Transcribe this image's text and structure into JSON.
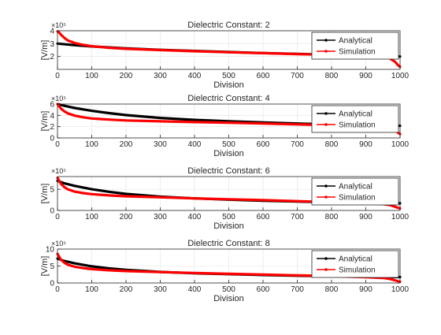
{
  "figure": {
    "background": "#ffffff",
    "axis_color": "#262626",
    "grid_color": "#e3e3e3"
  },
  "chart_data": [
    {
      "type": "line",
      "title": "Dielectric Constant: 2",
      "xlabel": "Division",
      "ylabel": "[V/m]",
      "y_exponent_label": "×10⁵",
      "xlim": [
        0,
        1000
      ],
      "ylim": [
        1,
        4
      ],
      "xticks": [
        "0",
        "100",
        "200",
        "300",
        "400",
        "500",
        "600",
        "700",
        "800",
        "900",
        "1000"
      ],
      "yticks": [
        "2",
        "3",
        "4"
      ],
      "grid": true,
      "legend": "top-right",
      "series": [
        {
          "name": "Analytical",
          "color": "#000000",
          "x": [
            0,
            50,
            100,
            200,
            300,
            400,
            500,
            600,
            700,
            800,
            900,
            950,
            1000
          ],
          "y": [
            3.0,
            2.88,
            2.78,
            2.63,
            2.52,
            2.43,
            2.35,
            2.27,
            2.2,
            2.13,
            2.07,
            2.04,
            2.0
          ]
        },
        {
          "name": "Simulation",
          "color": "#ff0000",
          "x": [
            0,
            5,
            10,
            20,
            30,
            50,
            75,
            100,
            150,
            200,
            300,
            400,
            500,
            600,
            700,
            800,
            900,
            950,
            970,
            985,
            995,
            1000
          ],
          "y": [
            3.95,
            3.85,
            3.7,
            3.45,
            3.25,
            3.05,
            2.9,
            2.8,
            2.68,
            2.6,
            2.5,
            2.41,
            2.33,
            2.26,
            2.19,
            2.12,
            2.03,
            1.95,
            1.85,
            1.6,
            1.3,
            1.2
          ]
        }
      ]
    },
    {
      "type": "line",
      "title": "Dielectric Constant: 4",
      "xlabel": "Division",
      "ylabel": "[V/m]",
      "y_exponent_label": "×10⁵",
      "xlim": [
        0,
        1000
      ],
      "ylim": [
        0,
        6
      ],
      "xticks": [
        "0",
        "100",
        "200",
        "300",
        "400",
        "500",
        "600",
        "700",
        "800",
        "900",
        "1000"
      ],
      "yticks": [
        "0",
        "2",
        "4",
        "6"
      ],
      "grid": true,
      "legend": "top-right",
      "series": [
        {
          "name": "Analytical",
          "color": "#000000",
          "x": [
            0,
            20,
            50,
            100,
            150,
            200,
            300,
            400,
            500,
            600,
            700,
            800,
            900,
            1000
          ],
          "y": [
            6.0,
            5.7,
            5.3,
            4.8,
            4.4,
            4.05,
            3.55,
            3.2,
            2.95,
            2.75,
            2.55,
            2.4,
            2.25,
            2.15
          ]
        },
        {
          "name": "Simulation",
          "color": "#ff0000",
          "x": [
            0,
            5,
            10,
            20,
            30,
            50,
            75,
            100,
            150,
            200,
            300,
            400,
            500,
            600,
            700,
            800,
            900,
            950,
            970,
            985,
            995,
            1000
          ],
          "y": [
            6.0,
            5.6,
            5.2,
            4.7,
            4.35,
            3.95,
            3.65,
            3.45,
            3.25,
            3.1,
            2.95,
            2.8,
            2.7,
            2.55,
            2.4,
            2.25,
            2.05,
            1.9,
            1.7,
            1.3,
            0.9,
            0.7
          ]
        }
      ]
    },
    {
      "type": "line",
      "title": "Dielectric Constant: 6",
      "xlabel": "Division",
      "ylabel": "[V/m]",
      "y_exponent_label": "×10⁵",
      "xlim": [
        0,
        1000
      ],
      "ylim": [
        0,
        8
      ],
      "xticks": [
        "0",
        "100",
        "200",
        "300",
        "400",
        "500",
        "600",
        "700",
        "800",
        "900",
        "1000"
      ],
      "yticks": [
        "0",
        "5"
      ],
      "grid": true,
      "legend": "top-right",
      "series": [
        {
          "name": "Analytical",
          "color": "#000000",
          "x": [
            0,
            20,
            50,
            100,
            150,
            200,
            300,
            400,
            500,
            600,
            700,
            800,
            900,
            1000
          ],
          "y": [
            7.0,
            6.4,
            5.8,
            5.0,
            4.4,
            3.9,
            3.25,
            2.85,
            2.55,
            2.3,
            2.1,
            1.95,
            1.8,
            1.7
          ]
        },
        {
          "name": "Simulation",
          "color": "#ff0000",
          "x": [
            0,
            5,
            10,
            20,
            30,
            50,
            75,
            100,
            150,
            200,
            300,
            400,
            500,
            600,
            700,
            800,
            900,
            950,
            970,
            985,
            995,
            1000
          ],
          "y": [
            7.7,
            7.0,
            6.3,
            5.5,
            5.0,
            4.45,
            4.1,
            3.85,
            3.55,
            3.35,
            3.1,
            2.85,
            2.65,
            2.45,
            2.2,
            2.0,
            1.7,
            1.5,
            1.3,
            0.9,
            0.6,
            0.5
          ]
        }
      ]
    },
    {
      "type": "line",
      "title": "Dielectric Constant: 8",
      "xlabel": "Division",
      "ylabel": "[V/m]",
      "y_exponent_label": "×10⁵",
      "xlim": [
        0,
        1000
      ],
      "ylim": [
        0,
        10
      ],
      "xticks": [
        "0",
        "100",
        "200",
        "300",
        "400",
        "500",
        "600",
        "700",
        "800",
        "900",
        "1000"
      ],
      "yticks": [
        "0",
        "5",
        "10"
      ],
      "grid": true,
      "legend": "top-right",
      "series": [
        {
          "name": "Analytical",
          "color": "#000000",
          "x": [
            0,
            20,
            50,
            100,
            150,
            200,
            300,
            400,
            500,
            600,
            700,
            800,
            900,
            1000
          ],
          "y": [
            7.2,
            6.5,
            5.8,
            4.9,
            4.3,
            3.85,
            3.25,
            2.85,
            2.6,
            2.35,
            2.15,
            2.0,
            1.85,
            1.75
          ]
        },
        {
          "name": "Simulation",
          "color": "#ff0000",
          "x": [
            0,
            5,
            10,
            20,
            30,
            50,
            75,
            100,
            150,
            200,
            300,
            400,
            500,
            600,
            700,
            800,
            900,
            950,
            970,
            985,
            995,
            1000
          ],
          "y": [
            8.6,
            7.7,
            6.9,
            6.0,
            5.4,
            4.8,
            4.4,
            4.1,
            3.75,
            3.5,
            3.2,
            2.95,
            2.7,
            2.5,
            2.25,
            2.0,
            1.7,
            1.5,
            1.2,
            0.8,
            0.5,
            0.35
          ]
        }
      ]
    }
  ]
}
